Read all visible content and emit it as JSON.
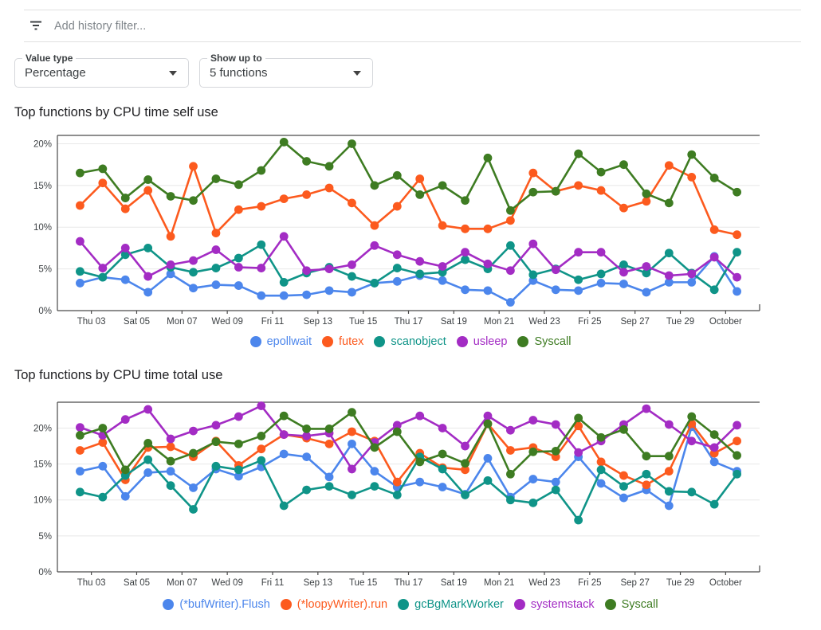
{
  "filter": {
    "icon": "filter-list-icon",
    "placeholder": "Add history filter..."
  },
  "controls": {
    "value_type": {
      "label": "Value type",
      "value": "Percentage"
    },
    "show_up_to": {
      "label": "Show up to",
      "value": "5 functions"
    }
  },
  "chart_data": [
    {
      "type": "line",
      "title": "Top functions by CPU time self use",
      "x_tick_labels": [
        "Thu 03",
        "Sat 05",
        "Mon 07",
        "Wed 09",
        "Fri 11",
        "Sep 13",
        "Tue 15",
        "Thu 17",
        "Sat 19",
        "Mon 21",
        "Wed 23",
        "Fri 25",
        "Sep 27",
        "Tue 29",
        "October"
      ],
      "y_tick_labels": [
        "0%",
        "5%",
        "10%",
        "15%",
        "20%"
      ],
      "y_ticks": [
        0,
        5,
        10,
        15,
        20
      ],
      "ylim": [
        0,
        21
      ],
      "grid": "horizontal",
      "legend_position": "bottom",
      "series": [
        {
          "name": "epollwait",
          "color": "#4c86ec",
          "values": [
            3.3,
            4.0,
            3.7,
            2.2,
            4.4,
            2.7,
            3.1,
            3.0,
            1.8,
            1.8,
            1.9,
            2.4,
            2.2,
            3.3,
            3.5,
            4.2,
            3.6,
            2.5,
            2.4,
            1.0,
            3.6,
            2.5,
            2.4,
            3.3,
            3.2,
            2.2,
            3.4,
            3.4,
            6.5,
            2.3
          ]
        },
        {
          "name": "futex",
          "color": "#fc5a1e",
          "values": [
            12.6,
            15.3,
            12.2,
            14.4,
            8.9,
            17.3,
            9.3,
            12.1,
            12.5,
            13.4,
            13.9,
            14.7,
            12.9,
            10.2,
            12.5,
            15.8,
            10.2,
            9.8,
            9.8,
            10.8,
            16.5,
            14.3,
            15.0,
            14.4,
            12.3,
            13.1,
            17.4,
            16.0,
            9.7,
            9.1
          ]
        },
        {
          "name": "scanobject",
          "color": "#0f9488",
          "values": [
            4.7,
            4.0,
            6.7,
            7.5,
            5.2,
            4.6,
            5.1,
            6.3,
            7.9,
            3.4,
            4.5,
            5.2,
            4.1,
            3.3,
            5.1,
            4.4,
            4.6,
            6.1,
            5.0,
            7.8,
            4.3,
            5.0,
            3.7,
            4.4,
            5.5,
            4.5,
            6.9,
            4.5,
            2.5,
            7.0
          ]
        },
        {
          "name": "usleep",
          "color": "#a32cc4",
          "values": [
            8.3,
            5.1,
            7.5,
            4.1,
            5.5,
            6.0,
            7.3,
            5.2,
            5.1,
            8.9,
            4.8,
            5.0,
            5.5,
            7.8,
            6.7,
            5.9,
            5.3,
            7.0,
            5.6,
            4.8,
            8.0,
            4.9,
            7.0,
            7.0,
            4.6,
            5.3,
            4.2,
            4.4,
            6.4,
            4.0
          ]
        },
        {
          "name": "Syscall",
          "color": "#3e7c22",
          "values": [
            16.5,
            17.0,
            13.5,
            15.7,
            13.7,
            13.2,
            15.8,
            15.1,
            16.8,
            20.2,
            17.9,
            17.3,
            20.0,
            15.0,
            16.2,
            13.9,
            15.0,
            13.2,
            18.3,
            12.0,
            14.2,
            14.3,
            18.8,
            16.6,
            17.5,
            14.0,
            12.9,
            18.7,
            15.9,
            14.2
          ]
        }
      ]
    },
    {
      "type": "line",
      "title": "Top functions by CPU time total use",
      "x_tick_labels": [
        "Thu 03",
        "Sat 05",
        "Mon 07",
        "Wed 09",
        "Fri 11",
        "Sep 13",
        "Tue 15",
        "Thu 17",
        "Sat 19",
        "Mon 21",
        "Wed 23",
        "Fri 25",
        "Sep 27",
        "Tue 29",
        "October"
      ],
      "y_tick_labels": [
        "0%",
        "5%",
        "10%",
        "15%",
        "20%"
      ],
      "y_ticks": [
        0,
        5,
        10,
        15,
        20
      ],
      "ylim": [
        0,
        23.6
      ],
      "grid": "horizontal",
      "legend_position": "bottom",
      "series": [
        {
          "name": "(*bufWriter).Flush",
          "color": "#4c86ec",
          "values": [
            14.0,
            14.7,
            10.5,
            13.8,
            14.0,
            11.7,
            14.3,
            13.3,
            14.6,
            16.4,
            16.0,
            13.2,
            17.8,
            14.0,
            11.8,
            12.5,
            11.8,
            10.8,
            15.8,
            10.4,
            12.9,
            12.5,
            16.0,
            12.3,
            10.3,
            11.4,
            9.2,
            20.2,
            15.3,
            14.0
          ]
        },
        {
          "name": "(*loopyWriter).run",
          "color": "#fc5a1e",
          "values": [
            16.9,
            18.0,
            12.8,
            17.3,
            17.4,
            16.0,
            18.2,
            14.8,
            17.1,
            19.1,
            18.6,
            17.8,
            19.5,
            18.2,
            12.5,
            16.5,
            14.5,
            14.2,
            20.6,
            16.9,
            17.3,
            16.0,
            20.3,
            15.3,
            13.4,
            12.1,
            14.0,
            20.6,
            16.5,
            18.2
          ]
        },
        {
          "name": "gcBgMarkWorker",
          "color": "#0f9488",
          "values": [
            11.1,
            10.4,
            13.4,
            15.6,
            12.0,
            8.7,
            14.7,
            14.2,
            15.5,
            9.2,
            11.4,
            11.9,
            10.7,
            11.9,
            10.7,
            16.0,
            14.3,
            10.7,
            12.7,
            10.0,
            9.6,
            11.4,
            7.2,
            14.2,
            11.9,
            13.6,
            11.2,
            11.1,
            9.4,
            13.6
          ]
        },
        {
          "name": "systemstack",
          "color": "#a32cc4",
          "values": [
            20.1,
            19.0,
            21.2,
            22.6,
            18.5,
            19.6,
            20.4,
            21.6,
            23.1,
            19.1,
            18.9,
            19.3,
            14.3,
            18.0,
            20.4,
            21.7,
            20.0,
            17.5,
            21.7,
            19.7,
            21.1,
            20.5,
            16.6,
            18.2,
            20.5,
            22.7,
            20.5,
            18.2,
            17.3,
            20.4
          ]
        },
        {
          "name": "Syscall",
          "color": "#3e7c22",
          "values": [
            19.0,
            20.0,
            14.2,
            17.9,
            15.4,
            16.5,
            18.1,
            17.8,
            18.9,
            21.7,
            19.9,
            19.9,
            22.2,
            17.3,
            19.5,
            15.3,
            16.4,
            15.1,
            20.6,
            13.6,
            16.7,
            16.8,
            21.4,
            18.7,
            19.8,
            16.1,
            16.1,
            21.6,
            19.1,
            16.2
          ]
        }
      ]
    }
  ]
}
